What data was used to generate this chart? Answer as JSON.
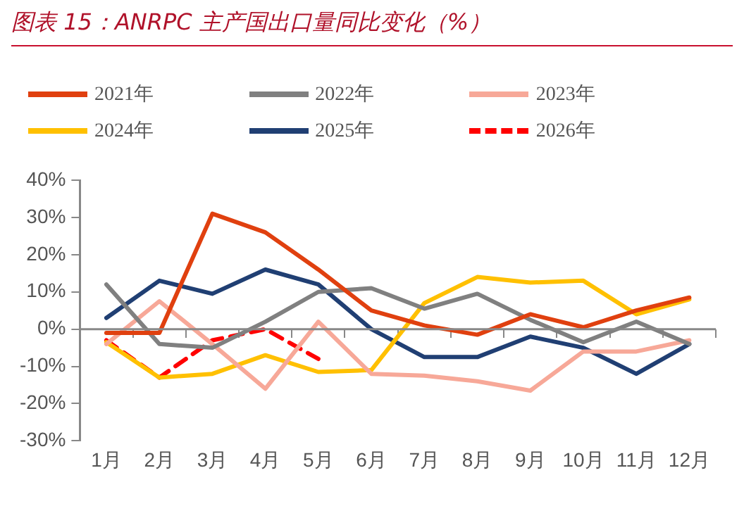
{
  "chart_data": {
    "type": "line",
    "title": "图表 15：ANRPC 主产国出口量同比变化（%）",
    "categories": [
      "1月",
      "2月",
      "3月",
      "4月",
      "5月",
      "6月",
      "7月",
      "8月",
      "9月",
      "10月",
      "11月",
      "12月"
    ],
    "series": [
      {
        "name": "2021年",
        "color": "#e0400f",
        "values": [
          -1,
          -1,
          31,
          26,
          16,
          5,
          1,
          -1.5,
          4,
          0.5,
          5,
          8.5
        ]
      },
      {
        "name": "2022年",
        "color": "#808080",
        "values": [
          12,
          -4,
          -5,
          2,
          10,
          11,
          5.5,
          9.5,
          2.5,
          -3.5,
          2,
          -4
        ]
      },
      {
        "name": "2023年",
        "color": "#f7a898",
        "values": [
          -4,
          7.5,
          -4,
          -16,
          2,
          -12,
          -12.5,
          -14,
          -16.5,
          -6,
          -6,
          -3
        ]
      },
      {
        "name": "2024年",
        "color": "#ffc000",
        "values": [
          -3.5,
          -13,
          -12,
          -7,
          -11.5,
          -11,
          7,
          14,
          12.5,
          13,
          4,
          8
        ]
      },
      {
        "name": "2025年",
        "color": "#203f73",
        "values": [
          3,
          13,
          9.5,
          16,
          12,
          0,
          -7.5,
          -7.5,
          -2,
          -5,
          -12,
          -4
        ]
      },
      {
        "name": "2026年",
        "color": "#ff0000",
        "line_style": "dashed",
        "values": [
          -3,
          -13,
          -3,
          0,
          -8,
          null,
          null,
          null,
          null,
          null,
          null,
          null
        ]
      }
    ],
    "ylim": [
      -30,
      40
    ],
    "yticks": [
      {
        "value": -30,
        "label": "-30%"
      },
      {
        "value": -20,
        "label": "-20%"
      },
      {
        "value": -10,
        "label": "-10%"
      },
      {
        "value": 0,
        "label": "0%"
      },
      {
        "value": 10,
        "label": "10%"
      },
      {
        "value": 20,
        "label": "20%"
      },
      {
        "value": 30,
        "label": "30%"
      },
      {
        "value": 40,
        "label": "40%"
      }
    ],
    "ref_lines": [
      {
        "axis": "y",
        "value": 0,
        "color": "#888888",
        "line_style": "solid"
      }
    ],
    "grid": false,
    "legend": "top",
    "marker": "none",
    "line_style": "solid"
  }
}
